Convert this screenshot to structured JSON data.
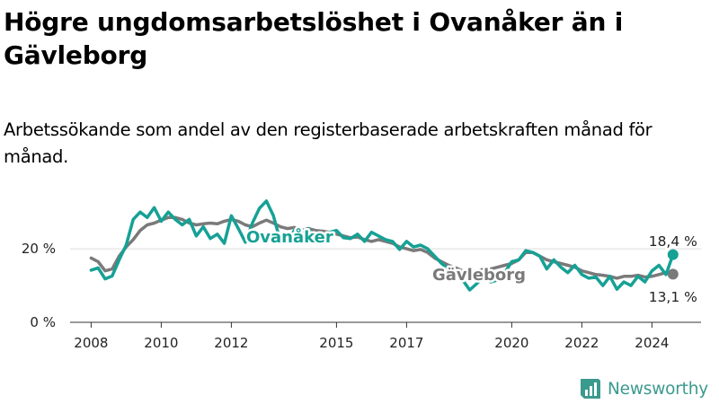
{
  "title": "Högre ungdomsarbetslöshet i Ovanåker än i Gävleborg",
  "subtitle": "Arbetssökande som andel av den registerbaserade arbetskraften månad för månad.",
  "brand": "Newsworthy",
  "colors": {
    "ovanaker": "#16a195",
    "gavleborg": "#7a7a7a",
    "grid": "#dcdcdc",
    "brand": "#3b9a8e"
  },
  "chart_data": {
    "type": "line",
    "x_ticks": [
      {
        "label": "2008",
        "x": 2008
      },
      {
        "label": "2010",
        "x": 2010
      },
      {
        "label": "2012",
        "x": 2012
      },
      {
        "label": "2015",
        "x": 2015
      },
      {
        "label": "2017",
        "x": 2017
      },
      {
        "label": "2020",
        "x": 2020
      },
      {
        "label": "2022",
        "x": 2022
      },
      {
        "label": "2024",
        "x": 2024
      }
    ],
    "y_ticks": [
      {
        "label": "0 %",
        "y": 0
      },
      {
        "label": "20 %",
        "y": 20
      }
    ],
    "xlim": [
      2007.4,
      2025.4
    ],
    "ylim": [
      0,
      32
    ],
    "grid": true,
    "series": [
      {
        "name": "Ovanåker",
        "key": "ovanaker",
        "end_label": "18,4 %",
        "points": [
          [
            2008.0,
            14.2
          ],
          [
            2008.2,
            14.8
          ],
          [
            2008.4,
            11.8
          ],
          [
            2008.6,
            12.6
          ],
          [
            2008.8,
            17.0
          ],
          [
            2009.0,
            21.0
          ],
          [
            2009.2,
            28.0
          ],
          [
            2009.4,
            30.0
          ],
          [
            2009.6,
            28.5
          ],
          [
            2009.8,
            31.2
          ],
          [
            2010.0,
            27.5
          ],
          [
            2010.2,
            30.0
          ],
          [
            2010.4,
            28.0
          ],
          [
            2010.6,
            26.5
          ],
          [
            2010.8,
            28.0
          ],
          [
            2011.0,
            23.5
          ],
          [
            2011.2,
            26.0
          ],
          [
            2011.4,
            22.8
          ],
          [
            2011.6,
            24.0
          ],
          [
            2011.8,
            21.5
          ],
          [
            2012.0,
            29.0
          ],
          [
            2012.2,
            25.5
          ],
          [
            2012.4,
            21.8
          ],
          [
            2012.6,
            27.0
          ],
          [
            2012.8,
            31.0
          ],
          [
            2013.0,
            33.0
          ],
          [
            2013.2,
            29.0
          ],
          [
            2013.4,
            22.0
          ],
          [
            2013.6,
            22.3
          ],
          [
            2013.8,
            25.0
          ],
          [
            2014.0,
            24.0
          ],
          [
            2014.2,
            25.5
          ],
          [
            2014.4,
            22.0
          ],
          [
            2014.6,
            23.0
          ],
          [
            2014.8,
            24.5
          ],
          [
            2015.0,
            25.0
          ],
          [
            2015.2,
            23.0
          ],
          [
            2015.4,
            22.8
          ],
          [
            2015.6,
            24.0
          ],
          [
            2015.8,
            22.0
          ],
          [
            2016.0,
            24.5
          ],
          [
            2016.2,
            23.5
          ],
          [
            2016.4,
            22.5
          ],
          [
            2016.6,
            22.0
          ],
          [
            2016.8,
            19.8
          ],
          [
            2017.0,
            22.0
          ],
          [
            2017.2,
            20.5
          ],
          [
            2017.4,
            21.0
          ],
          [
            2017.6,
            20.0
          ],
          [
            2017.8,
            18.0
          ],
          [
            2018.0,
            16.0
          ],
          [
            2018.2,
            14.5
          ],
          [
            2018.4,
            13.5
          ],
          [
            2018.6,
            11.5
          ],
          [
            2018.8,
            8.8
          ],
          [
            2019.0,
            10.5
          ],
          [
            2019.2,
            12.5
          ],
          [
            2019.4,
            11.0
          ],
          [
            2019.6,
            11.5
          ],
          [
            2019.8,
            13.5
          ],
          [
            2020.0,
            16.5
          ],
          [
            2020.2,
            17.0
          ],
          [
            2020.4,
            19.5
          ],
          [
            2020.6,
            19.0
          ],
          [
            2020.8,
            18.0
          ],
          [
            2021.0,
            14.5
          ],
          [
            2021.2,
            17.0
          ],
          [
            2021.4,
            15.0
          ],
          [
            2021.6,
            13.5
          ],
          [
            2021.8,
            15.5
          ],
          [
            2022.0,
            13.0
          ],
          [
            2022.2,
            12.0
          ],
          [
            2022.4,
            12.3
          ],
          [
            2022.6,
            10.0
          ],
          [
            2022.8,
            12.5
          ],
          [
            2023.0,
            9.0
          ],
          [
            2023.2,
            11.0
          ],
          [
            2023.4,
            10.0
          ],
          [
            2023.6,
            12.5
          ],
          [
            2023.8,
            11.0
          ],
          [
            2024.0,
            14.0
          ],
          [
            2024.2,
            15.5
          ],
          [
            2024.4,
            13.0
          ],
          [
            2024.6,
            18.4
          ]
        ]
      },
      {
        "name": "Gävleborg",
        "key": "gavleborg",
        "end_label": "13,1 %",
        "points": [
          [
            2008.0,
            17.5
          ],
          [
            2008.2,
            16.5
          ],
          [
            2008.4,
            14.0
          ],
          [
            2008.6,
            14.5
          ],
          [
            2008.8,
            18.0
          ],
          [
            2009.0,
            20.5
          ],
          [
            2009.2,
            22.5
          ],
          [
            2009.4,
            25.0
          ],
          [
            2009.6,
            26.5
          ],
          [
            2009.8,
            27.0
          ],
          [
            2010.0,
            27.8
          ],
          [
            2010.2,
            28.5
          ],
          [
            2010.4,
            28.5
          ],
          [
            2010.6,
            28.0
          ],
          [
            2010.8,
            27.0
          ],
          [
            2011.0,
            26.5
          ],
          [
            2011.2,
            26.8
          ],
          [
            2011.4,
            27.0
          ],
          [
            2011.6,
            26.8
          ],
          [
            2011.8,
            27.5
          ],
          [
            2012.0,
            28.0
          ],
          [
            2012.2,
            27.5
          ],
          [
            2012.4,
            26.5
          ],
          [
            2012.6,
            26.0
          ],
          [
            2012.8,
            27.0
          ],
          [
            2013.0,
            27.8
          ],
          [
            2013.2,
            27.0
          ],
          [
            2013.4,
            26.0
          ],
          [
            2013.6,
            25.5
          ],
          [
            2013.8,
            25.8
          ],
          [
            2014.0,
            25.0
          ],
          [
            2014.2,
            25.5
          ],
          [
            2014.4,
            25.0
          ],
          [
            2014.6,
            24.8
          ],
          [
            2014.8,
            24.5
          ],
          [
            2015.0,
            24.0
          ],
          [
            2015.2,
            23.5
          ],
          [
            2015.4,
            23.0
          ],
          [
            2015.6,
            23.2
          ],
          [
            2015.8,
            22.5
          ],
          [
            2016.0,
            22.0
          ],
          [
            2016.2,
            22.5
          ],
          [
            2016.4,
            22.0
          ],
          [
            2016.6,
            21.5
          ],
          [
            2016.8,
            20.5
          ],
          [
            2017.0,
            20.0
          ],
          [
            2017.2,
            19.5
          ],
          [
            2017.4,
            19.8
          ],
          [
            2017.6,
            19.0
          ],
          [
            2017.8,
            17.5
          ],
          [
            2018.0,
            16.5
          ],
          [
            2018.2,
            15.5
          ],
          [
            2018.4,
            14.8
          ],
          [
            2018.6,
            14.0
          ],
          [
            2018.8,
            13.5
          ],
          [
            2019.0,
            13.8
          ],
          [
            2019.2,
            14.5
          ],
          [
            2019.4,
            14.5
          ],
          [
            2019.6,
            15.0
          ],
          [
            2019.8,
            15.5
          ],
          [
            2020.0,
            16.0
          ],
          [
            2020.2,
            17.0
          ],
          [
            2020.4,
            19.0
          ],
          [
            2020.6,
            19.0
          ],
          [
            2020.8,
            18.0
          ],
          [
            2021.0,
            17.0
          ],
          [
            2021.2,
            16.5
          ],
          [
            2021.4,
            16.0
          ],
          [
            2021.6,
            15.5
          ],
          [
            2021.8,
            15.0
          ],
          [
            2022.0,
            14.0
          ],
          [
            2022.2,
            13.5
          ],
          [
            2022.4,
            13.0
          ],
          [
            2022.6,
            12.8
          ],
          [
            2022.8,
            12.5
          ],
          [
            2023.0,
            12.0
          ],
          [
            2023.2,
            12.5
          ],
          [
            2023.4,
            12.5
          ],
          [
            2023.6,
            12.8
          ],
          [
            2023.8,
            12.3
          ],
          [
            2024.0,
            12.5
          ],
          [
            2024.2,
            13.0
          ],
          [
            2024.4,
            13.5
          ],
          [
            2024.6,
            13.1
          ]
        ]
      }
    ]
  }
}
